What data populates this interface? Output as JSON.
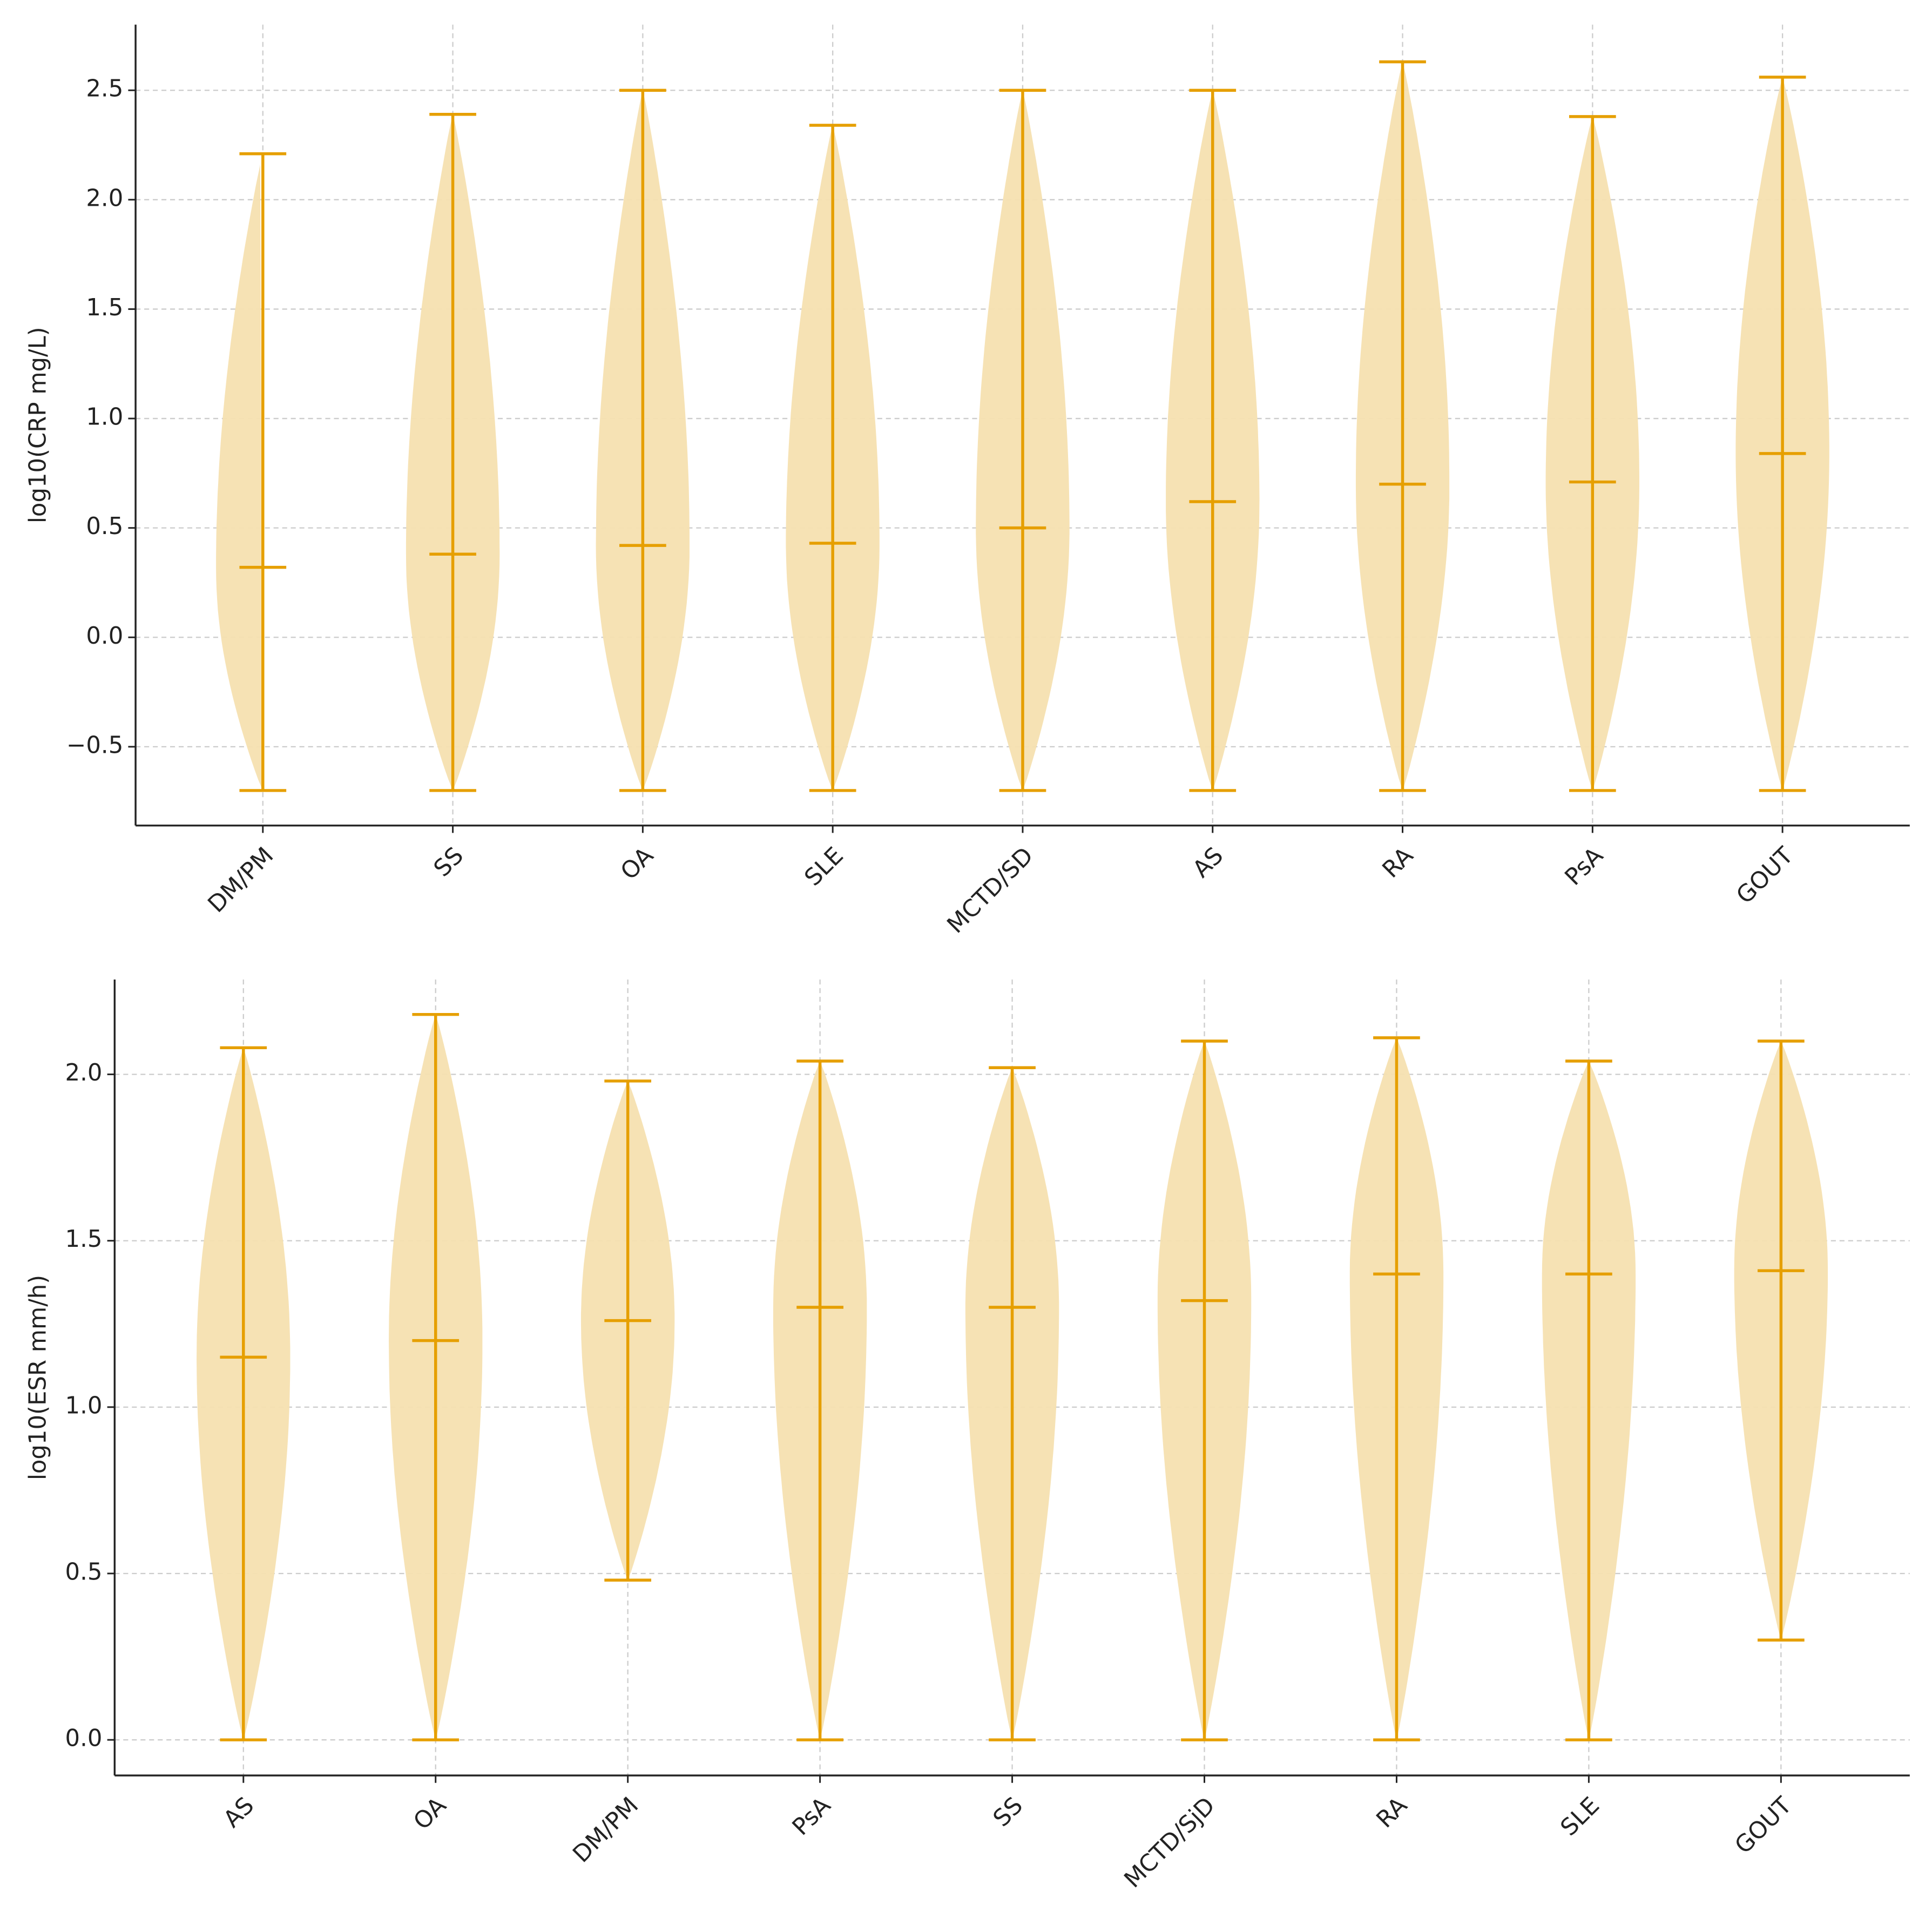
{
  "chart_data": [
    {
      "type": "violin",
      "ylabel": "log10(CRP mg/L)",
      "color": "#E69F00",
      "body_color": "#F6E0B0",
      "grid": true,
      "categories": [
        "DM/PM",
        "SS",
        "OA",
        "SLE",
        "MCTD/SD",
        "AS",
        "RA",
        "PsA",
        "GOUT"
      ],
      "min": [
        -0.7,
        -0.7,
        -0.7,
        -0.7,
        -0.7,
        -0.7,
        -0.7,
        -0.7,
        -0.7
      ],
      "median": [
        0.32,
        0.38,
        0.42,
        0.43,
        0.5,
        0.62,
        0.7,
        0.71,
        0.84
      ],
      "max": [
        2.21,
        2.39,
        2.5,
        2.34,
        2.5,
        2.5,
        2.63,
        2.38,
        2.56
      ],
      "ylim": [
        -0.86,
        2.8
      ],
      "yticks": [
        {
          "value": -0.5,
          "label": "−0.5"
        },
        {
          "value": 0,
          "label": "0.0"
        },
        0.5,
        {
          "value": 1,
          "label": "1.0"
        },
        1.5,
        {
          "value": 2,
          "label": "2.0"
        },
        2.5
      ]
    },
    {
      "type": "violin",
      "ylabel": "log10(ESR mm/h)",
      "color": "#E69F00",
      "body_color": "#F6E0B0",
      "grid": true,
      "categories": [
        "AS",
        "OA",
        "DM/PM",
        "PsA",
        "SS",
        "MCTD/SjD",
        "RA",
        "SLE",
        "GOUT"
      ],
      "min": [
        0,
        0,
        0.48,
        0,
        0,
        0,
        0,
        0,
        0.3
      ],
      "median": [
        1.15,
        1.2,
        1.26,
        1.3,
        1.3,
        1.32,
        1.4,
        1.4,
        1.41
      ],
      "max": [
        2.08,
        2.18,
        1.98,
        2.04,
        2.02,
        2.1,
        2.11,
        2.04,
        2.1
      ],
      "ylim": [
        -0.107,
        2.285
      ],
      "yticks": [
        {
          "value": 0,
          "label": "0.0"
        },
        0.5,
        {
          "value": 1,
          "label": "1.0"
        },
        1.5,
        {
          "value": 2,
          "label": "2.0"
        }
      ]
    }
  ]
}
